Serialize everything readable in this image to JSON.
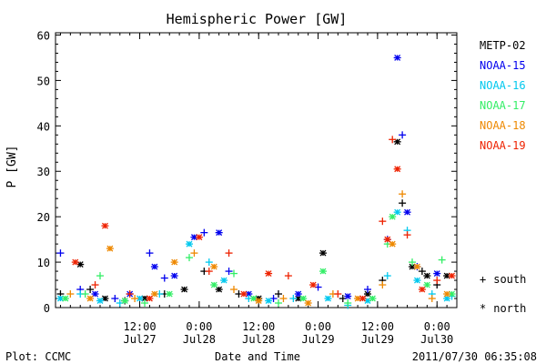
{
  "chart_data": {
    "type": "scatter",
    "title": "Hemispheric Power [GW]",
    "xlabel": "Date and Time",
    "ylabel": "P [GW]",
    "ylim": [
      0,
      60.5
    ],
    "xlim": [
      "2011-07-26T19:00",
      "2011-07-30T04:00"
    ],
    "yticks": [
      0,
      10,
      20,
      30,
      40,
      50,
      60
    ],
    "xticks": [
      {
        "t": "2011-07-27T12:00",
        "line1": "12:00",
        "line2": "Jul27"
      },
      {
        "t": "2011-07-28T00:00",
        "line1": "0:00",
        "line2": "Jul28"
      },
      {
        "t": "2011-07-28T12:00",
        "line1": "12:00",
        "line2": "Jul28"
      },
      {
        "t": "2011-07-29T00:00",
        "line1": "0:00",
        "line2": "Jul29"
      },
      {
        "t": "2011-07-29T12:00",
        "line1": "12:00",
        "line2": "Jul29"
      },
      {
        "t": "2011-07-30T00:00",
        "line1": "0:00",
        "line2": "Jul30"
      }
    ],
    "grid": false,
    "legend_position": "right",
    "markers": {
      "south": "+",
      "north": "*"
    },
    "marker_legend": [
      {
        "symbol": "+",
        "label": "south"
      },
      {
        "symbol": "*",
        "label": "north"
      }
    ],
    "series": [
      {
        "name": "METP-02",
        "color": "#000000",
        "points": [
          [
            "2011-07-26T20:00",
            3,
            "+"
          ],
          [
            "2011-07-27T00:00",
            9.5,
            "*"
          ],
          [
            "2011-07-27T02:00",
            4,
            "+"
          ],
          [
            "2011-07-27T05:00",
            2,
            "*"
          ],
          [
            "2011-07-27T09:00",
            1.5,
            "+"
          ],
          [
            "2011-07-27T13:00",
            2,
            "*"
          ],
          [
            "2011-07-27T17:00",
            3,
            "+"
          ],
          [
            "2011-07-27T21:00",
            4,
            "*"
          ],
          [
            "2011-07-28T01:00",
            8,
            "+"
          ],
          [
            "2011-07-28T04:00",
            4,
            "*"
          ],
          [
            "2011-07-28T08:00",
            3,
            "+"
          ],
          [
            "2011-07-28T12:00",
            2,
            "*"
          ],
          [
            "2011-07-28T16:00",
            3,
            "+"
          ],
          [
            "2011-07-28T20:00",
            2,
            "*"
          ],
          [
            "2011-07-29T01:00",
            12,
            "*"
          ],
          [
            "2011-07-29T05:00",
            2,
            "+"
          ],
          [
            "2011-07-29T10:00",
            3,
            "*"
          ],
          [
            "2011-07-29T13:00",
            6,
            "+"
          ],
          [
            "2011-07-29T16:00",
            36.5,
            "*"
          ],
          [
            "2011-07-29T17:00",
            23,
            "+"
          ],
          [
            "2011-07-29T19:00",
            9,
            "*"
          ],
          [
            "2011-07-29T21:00",
            8,
            "+"
          ],
          [
            "2011-07-29T22:00",
            7,
            "*"
          ],
          [
            "2011-07-30T00:00",
            5,
            "+"
          ],
          [
            "2011-07-30T02:00",
            7,
            "*"
          ]
        ]
      },
      {
        "name": "NOAA-15",
        "color": "#0000ee",
        "points": [
          [
            "2011-07-26T20:00",
            12,
            "+"
          ],
          [
            "2011-07-27T00:00",
            4,
            "+"
          ],
          [
            "2011-07-27T03:00",
            3,
            "*"
          ],
          [
            "2011-07-27T07:00",
            2,
            "+"
          ],
          [
            "2011-07-27T10:00",
            3,
            "*"
          ],
          [
            "2011-07-27T14:00",
            12,
            "+"
          ],
          [
            "2011-07-27T15:00",
            9,
            "*"
          ],
          [
            "2011-07-27T17:00",
            6.5,
            "+"
          ],
          [
            "2011-07-27T19:00",
            7,
            "*"
          ],
          [
            "2011-07-27T23:00",
            15.5,
            "*"
          ],
          [
            "2011-07-28T01:00",
            16.5,
            "+"
          ],
          [
            "2011-07-28T04:00",
            16.5,
            "*"
          ],
          [
            "2011-07-28T06:00",
            8,
            "+"
          ],
          [
            "2011-07-28T10:00",
            3,
            "*"
          ],
          [
            "2011-07-28T15:00",
            2,
            "+"
          ],
          [
            "2011-07-28T20:00",
            3,
            "*"
          ],
          [
            "2011-07-29T00:00",
            4.5,
            "+"
          ],
          [
            "2011-07-29T06:00",
            2.5,
            "*"
          ],
          [
            "2011-07-29T10:00",
            4,
            "+"
          ],
          [
            "2011-07-29T14:00",
            15,
            "+"
          ],
          [
            "2011-07-29T16:00",
            55,
            "*"
          ],
          [
            "2011-07-29T17:00",
            38,
            "+"
          ],
          [
            "2011-07-29T18:00",
            21,
            "*"
          ],
          [
            "2011-07-29T20:00",
            9,
            "+"
          ],
          [
            "2011-07-30T00:00",
            7.5,
            "*"
          ]
        ]
      },
      {
        "name": "NOAA-16",
        "color": "#00c8ee",
        "points": [
          [
            "2011-07-26T20:00",
            2,
            "*"
          ],
          [
            "2011-07-27T00:00",
            3,
            "+"
          ],
          [
            "2011-07-27T04:00",
            1.5,
            "*"
          ],
          [
            "2011-07-27T08:00",
            1,
            "+"
          ],
          [
            "2011-07-27T12:00",
            2,
            "*"
          ],
          [
            "2011-07-27T16:00",
            3,
            "+"
          ],
          [
            "2011-07-27T22:00",
            14,
            "*"
          ],
          [
            "2011-07-28T02:00",
            10,
            "+"
          ],
          [
            "2011-07-28T05:00",
            6,
            "*"
          ],
          [
            "2011-07-28T10:00",
            2,
            "+"
          ],
          [
            "2011-07-28T14:00",
            1.5,
            "*"
          ],
          [
            "2011-07-28T19:00",
            2,
            "+"
          ],
          [
            "2011-07-29T02:00",
            2,
            "*"
          ],
          [
            "2011-07-29T06:00",
            0.5,
            "+"
          ],
          [
            "2011-07-29T10:00",
            1.5,
            "*"
          ],
          [
            "2011-07-29T14:00",
            7,
            "+"
          ],
          [
            "2011-07-29T16:00",
            21,
            "*"
          ],
          [
            "2011-07-29T18:00",
            17,
            "+"
          ],
          [
            "2011-07-29T20:00",
            6,
            "*"
          ],
          [
            "2011-07-29T23:00",
            3,
            "+"
          ],
          [
            "2011-07-30T02:00",
            2,
            "*"
          ],
          [
            "2011-07-30T03:00",
            2.5,
            "+"
          ]
        ]
      },
      {
        "name": "NOAA-17",
        "color": "#33ee66",
        "points": [
          [
            "2011-07-26T21:00",
            2,
            "*"
          ],
          [
            "2011-07-27T01:00",
            3,
            "+"
          ],
          [
            "2011-07-27T04:00",
            7,
            "+"
          ],
          [
            "2011-07-27T09:00",
            1.5,
            "*"
          ],
          [
            "2011-07-27T13:00",
            1,
            "+"
          ],
          [
            "2011-07-27T18:00",
            3,
            "*"
          ],
          [
            "2011-07-27T22:00",
            11,
            "+"
          ],
          [
            "2011-07-28T03:00",
            5,
            "*"
          ],
          [
            "2011-07-28T07:00",
            7.5,
            "+"
          ],
          [
            "2011-07-28T11:00",
            2,
            "*"
          ],
          [
            "2011-07-28T16:00",
            1,
            "+"
          ],
          [
            "2011-07-28T21:00",
            2,
            "*"
          ],
          [
            "2011-07-29T01:00",
            8,
            "*"
          ],
          [
            "2011-07-29T06:00",
            1,
            "+"
          ],
          [
            "2011-07-29T11:00",
            2,
            "*"
          ],
          [
            "2011-07-29T14:00",
            14,
            "+"
          ],
          [
            "2011-07-29T15:00",
            20,
            "*"
          ],
          [
            "2011-07-29T19:00",
            10,
            "+"
          ],
          [
            "2011-07-29T22:00",
            5,
            "*"
          ],
          [
            "2011-07-30T01:00",
            10.5,
            "+"
          ],
          [
            "2011-07-30T03:00",
            3,
            "*"
          ]
        ]
      },
      {
        "name": "NOAA-18",
        "color": "#ee8800",
        "points": [
          [
            "2011-07-26T22:00",
            3,
            "+"
          ],
          [
            "2011-07-27T02:00",
            2,
            "*"
          ],
          [
            "2011-07-27T06:00",
            13,
            "*"
          ],
          [
            "2011-07-27T11:00",
            2,
            "+"
          ],
          [
            "2011-07-27T15:00",
            3,
            "*"
          ],
          [
            "2011-07-27T19:00",
            10,
            "*"
          ],
          [
            "2011-07-27T23:00",
            12,
            "+"
          ],
          [
            "2011-07-28T03:00",
            9,
            "*"
          ],
          [
            "2011-07-28T07:00",
            4,
            "+"
          ],
          [
            "2011-07-28T12:00",
            1.5,
            "*"
          ],
          [
            "2011-07-28T17:00",
            2,
            "+"
          ],
          [
            "2011-07-28T22:00",
            1,
            "*"
          ],
          [
            "2011-07-29T03:00",
            3,
            "+"
          ],
          [
            "2011-07-29T08:00",
            2,
            "*"
          ],
          [
            "2011-07-29T13:00",
            5,
            "+"
          ],
          [
            "2011-07-29T15:00",
            14,
            "*"
          ],
          [
            "2011-07-29T17:00",
            25,
            "+"
          ],
          [
            "2011-07-29T20:00",
            9,
            "*"
          ],
          [
            "2011-07-29T23:00",
            2,
            "+"
          ],
          [
            "2011-07-30T02:00",
            3,
            "*"
          ]
        ]
      },
      {
        "name": "NOAA-19",
        "color": "#ee2200",
        "points": [
          [
            "2011-07-26T23:00",
            10,
            "*"
          ],
          [
            "2011-07-27T03:00",
            5,
            "+"
          ],
          [
            "2011-07-27T05:00",
            18,
            "*"
          ],
          [
            "2011-07-27T10:00",
            3,
            "+"
          ],
          [
            "2011-07-27T14:00",
            2,
            "*"
          ],
          [
            "2011-07-28T00:00",
            15.5,
            "*"
          ],
          [
            "2011-07-28T02:00",
            8,
            "+"
          ],
          [
            "2011-07-28T06:00",
            12,
            "+"
          ],
          [
            "2011-07-28T09:00",
            3,
            "*"
          ],
          [
            "2011-07-28T14:00",
            7.5,
            "*"
          ],
          [
            "2011-07-28T18:00",
            7,
            "+"
          ],
          [
            "2011-07-28T23:00",
            5,
            "*"
          ],
          [
            "2011-07-29T04:00",
            3,
            "+"
          ],
          [
            "2011-07-29T09:00",
            2,
            "*"
          ],
          [
            "2011-07-29T13:00",
            19,
            "+"
          ],
          [
            "2011-07-29T14:00",
            15,
            "*"
          ],
          [
            "2011-07-29T15:00",
            37,
            "+"
          ],
          [
            "2011-07-29T16:00",
            30.5,
            "*"
          ],
          [
            "2011-07-29T18:00",
            16,
            "+"
          ],
          [
            "2011-07-29T21:00",
            4,
            "*"
          ],
          [
            "2011-07-30T00:00",
            6,
            "+"
          ],
          [
            "2011-07-30T03:00",
            7,
            "*"
          ]
        ]
      }
    ]
  },
  "footer": {
    "plot_label": "Plot: CCMC",
    "timestamp": "2011/07/30 06:35:08"
  }
}
